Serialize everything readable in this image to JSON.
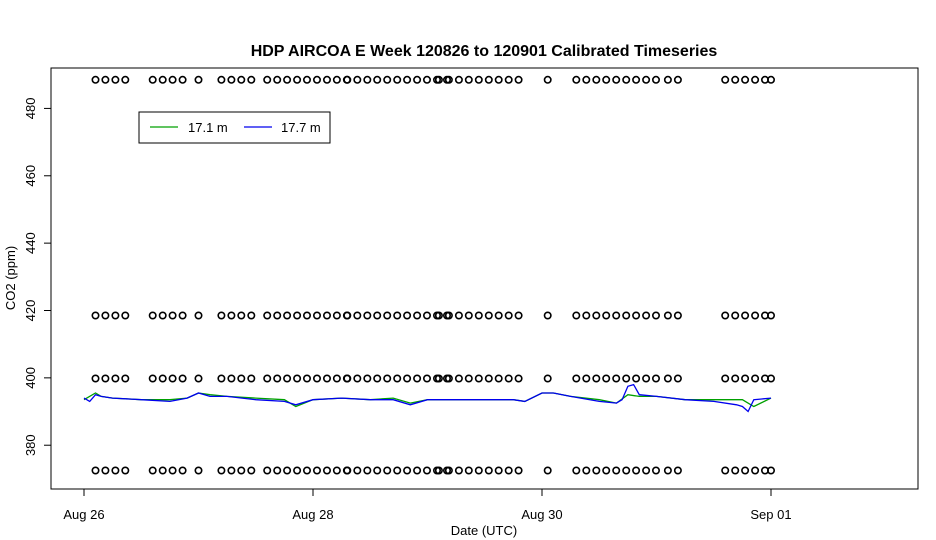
{
  "chart_data": {
    "type": "line",
    "title": "HDP AIRCOA E  Week 120826 to 120901  Calibrated Timeseries",
    "xlabel": "Date (UTC)",
    "ylabel": "CO2 (ppm)",
    "x_range_days": [
      -0.3,
      7.25
    ],
    "x_ticks": [
      {
        "day": 0,
        "label": "Aug 26"
      },
      {
        "day": 2,
        "label": "Aug 28"
      },
      {
        "day": 4,
        "label": "Aug 30"
      },
      {
        "day": 6,
        "label": "Sep 01"
      }
    ],
    "ylim": [
      367,
      492
    ],
    "y_ticks": [
      380,
      400,
      420,
      440,
      460,
      480
    ],
    "legend": {
      "placement": "top-left",
      "entries": [
        {
          "name": "17.1 m",
          "color": "#00a000"
        },
        {
          "name": "17.7 m",
          "color": "#0000ee"
        }
      ]
    },
    "series": [
      {
        "name": "17.1 m",
        "color": "#00a000",
        "x_days": [
          0.0,
          0.1,
          0.15,
          0.25,
          0.5,
          0.75,
          0.9,
          1.0,
          1.1,
          1.25,
          1.5,
          1.75,
          1.85,
          2.0,
          2.25,
          2.5,
          2.7,
          2.85,
          3.0,
          3.25,
          3.5,
          3.75,
          3.85,
          4.0,
          4.1,
          4.25,
          4.5,
          4.65,
          4.75,
          4.85,
          5.0,
          5.25,
          5.5,
          5.75,
          5.85,
          6.0
        ],
        "values": [
          393.5,
          395.5,
          394.5,
          394,
          393.5,
          393.5,
          394,
          395.5,
          395,
          394.5,
          394,
          393.5,
          391.5,
          393.5,
          394,
          393.5,
          394,
          392.5,
          393.5,
          393.5,
          393.5,
          393.5,
          393,
          395.5,
          395.5,
          394.5,
          393.5,
          392.5,
          395,
          394.5,
          394.5,
          393.5,
          393.5,
          393.5,
          391.5,
          394
        ]
      },
      {
        "name": "17.7 m",
        "color": "#0000ee",
        "x_days": [
          0.0,
          0.05,
          0.1,
          0.15,
          0.25,
          0.5,
          0.75,
          0.9,
          1.0,
          1.1,
          1.25,
          1.5,
          1.75,
          1.85,
          2.0,
          2.25,
          2.5,
          2.7,
          2.85,
          3.0,
          3.25,
          3.5,
          3.75,
          3.85,
          4.0,
          4.1,
          4.25,
          4.5,
          4.65,
          4.7,
          4.75,
          4.8,
          4.85,
          5.0,
          5.25,
          5.5,
          5.7,
          5.75,
          5.8,
          5.85,
          6.0
        ],
        "values": [
          394,
          393,
          395,
          394.5,
          394,
          393.5,
          393,
          394,
          395.5,
          394.5,
          394.5,
          393.5,
          393,
          392,
          393.5,
          394,
          393.5,
          393.5,
          392,
          393.5,
          393.5,
          393.5,
          393.5,
          393,
          395.5,
          395.5,
          394.5,
          393,
          392.5,
          393.5,
          397.5,
          398,
          395,
          394.5,
          393.5,
          393,
          392,
          391.5,
          390,
          393.5,
          394
        ]
      }
    ],
    "calibration_points": {
      "levels_ppm": [
        488.5,
        418.5,
        399.8,
        372.5
      ],
      "runs": [
        {
          "start": 0.1,
          "count": 4
        },
        {
          "start": 0.6,
          "count": 4
        },
        {
          "start": 1.0,
          "count": 1
        },
        {
          "start": 1.2,
          "count": 4
        },
        {
          "start": 1.6,
          "count": 9
        },
        {
          "start": 2.3,
          "count": 11
        },
        {
          "start": 3.1,
          "count": 9
        },
        {
          "start": 4.05,
          "count": 1
        },
        {
          "start": 4.3,
          "count": 9
        },
        {
          "start": 5.1,
          "count": 2
        },
        {
          "start": 5.6,
          "count": 5
        },
        {
          "start": 6.0,
          "count": 1
        }
      ]
    }
  }
}
